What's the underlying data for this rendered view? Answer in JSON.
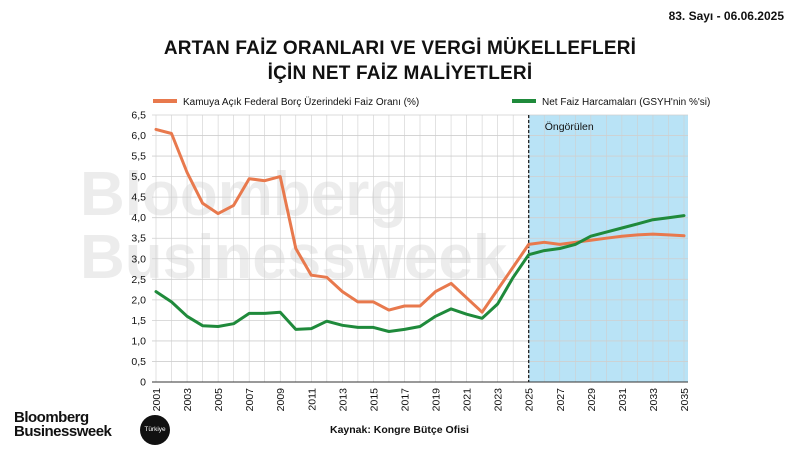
{
  "header": {
    "issue": "83. Sayı - 06.06.2025",
    "title_line1": "ARTAN FAİZ ORANLARI VE VERGİ MÜKELLEFLERİ",
    "title_line2": "İÇİN NET FAİZ MALİYETLERİ"
  },
  "footer": {
    "source": "Kaynak: Kongre Bütçe Ofisi",
    "brand_line1": "Bloomberg",
    "brand_line2": "Businessweek",
    "badge": "Türkiye"
  },
  "colors": {
    "rate": "#e8794d",
    "spending": "#1f8a3b",
    "forecast_bg": "#b9e3f6",
    "grid": "#cfcfcf"
  },
  "chart_data": {
    "type": "line",
    "title": "ARTAN FAİZ ORANLARI VE VERGİ MÜKELLEFLERİ İÇİN NET FAİZ MALİYETLERİ",
    "ylim": [
      0,
      6.5
    ],
    "xlim": [
      2001,
      2035
    ],
    "y_ticks": [
      "0",
      "0,5",
      "1,0",
      "1,5",
      "2,0",
      "2,5",
      "3,0",
      "3,5",
      "4,0",
      "4,5",
      "5,0",
      "5,5",
      "6,0",
      "6,5"
    ],
    "x_ticks": [
      "2001",
      "2003",
      "2005",
      "2007",
      "2009",
      "2011",
      "2013",
      "2015",
      "2017",
      "2019",
      "2021",
      "2023",
      "2025",
      "2027",
      "2029",
      "2031",
      "2033",
      "2035"
    ],
    "grid": true,
    "legend_position": "top",
    "forecast_start": 2025,
    "forecast_label": "Öngörülen",
    "x": [
      2001,
      2002,
      2003,
      2004,
      2005,
      2006,
      2007,
      2008,
      2009,
      2010,
      2011,
      2012,
      2013,
      2014,
      2015,
      2016,
      2017,
      2018,
      2019,
      2020,
      2021,
      2022,
      2023,
      2024,
      2025,
      2026,
      2027,
      2028,
      2029,
      2030,
      2031,
      2032,
      2033,
      2034,
      2035
    ],
    "series": [
      {
        "name": "Kamuya Açık Federal Borç Üzerindeki Faiz Oranı (%)",
        "values": [
          6.15,
          6.05,
          5.1,
          4.35,
          4.1,
          4.3,
          4.95,
          4.9,
          5.0,
          3.25,
          2.6,
          2.55,
          2.2,
          1.95,
          1.95,
          1.75,
          1.85,
          1.85,
          2.2,
          2.4,
          2.05,
          1.7,
          2.25,
          2.8,
          3.35,
          3.4,
          3.35,
          3.4,
          3.45,
          3.5,
          3.55,
          3.58,
          3.6,
          3.58,
          3.56
        ]
      },
      {
        "name": "Net Faiz Harcamaları (GSYH'nin %'si)",
        "values": [
          2.2,
          1.95,
          1.6,
          1.37,
          1.35,
          1.42,
          1.67,
          1.67,
          1.7,
          1.28,
          1.3,
          1.48,
          1.38,
          1.33,
          1.33,
          1.23,
          1.28,
          1.35,
          1.6,
          1.78,
          1.65,
          1.55,
          1.9,
          2.55,
          3.1,
          3.2,
          3.25,
          3.35,
          3.55,
          3.65,
          3.75,
          3.85,
          3.95,
          4.0,
          4.05
        ]
      }
    ]
  }
}
